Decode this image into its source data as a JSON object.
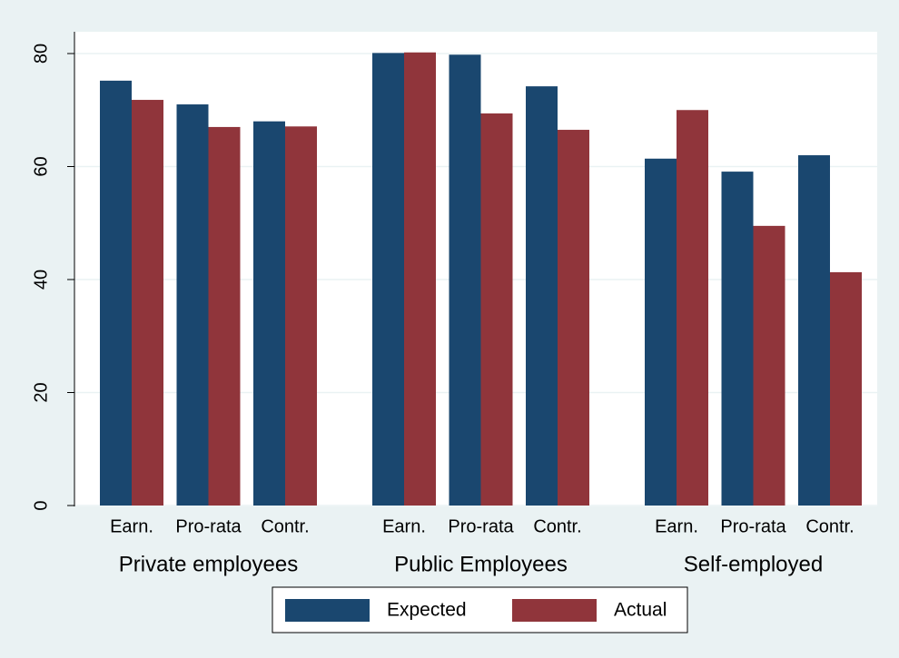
{
  "chart_data": {
    "type": "bar",
    "groups": [
      "Private employees",
      "Public Employees",
      "Self-employed"
    ],
    "categories": [
      "Earn.",
      "Pro-rata",
      "Contr.",
      "Earn.",
      "Pro-rata",
      "Contr.",
      "Earn.",
      "Pro-rata",
      "Contr."
    ],
    "series": [
      {
        "name": "Expected",
        "color": "#1a476f",
        "values": [
          75.2,
          71,
          68,
          80.1,
          79.8,
          74.2,
          61.4,
          59.1,
          62
        ]
      },
      {
        "name": "Actual",
        "color": "#90353b",
        "values": [
          71.8,
          67,
          67.1,
          80.2,
          69.4,
          66.5,
          70,
          49.5,
          41.3
        ]
      }
    ],
    "ylim": [
      0,
      80
    ],
    "yticks": [
      0,
      20,
      40,
      60,
      80
    ],
    "grid": true,
    "legend": "bottom"
  }
}
